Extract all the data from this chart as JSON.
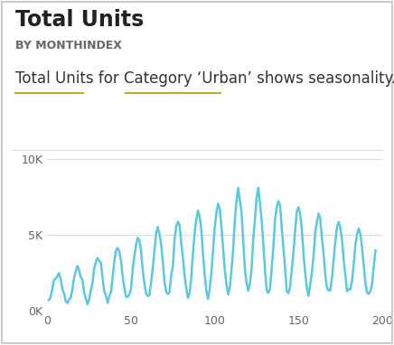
{
  "title": "Total Units",
  "subtitle": "BY MONTHINDEX",
  "annotation": "Total Units for Category ‘Urban’ shows seasonality.",
  "line_color": "#5BC8E0",
  "background_color": "#FFFFFF",
  "border_color": "#CCCCCC",
  "xlim": [
    0,
    200
  ],
  "ylim": [
    0,
    10000
  ],
  "yticks": [
    0,
    5000,
    10000
  ],
  "ytick_labels": [
    "0K",
    "5K",
    "10K"
  ],
  "xticks": [
    0,
    50,
    100,
    150,
    200
  ],
  "grid_color": "#DDDDDD",
  "underline_color": "#C8A820",
  "title_fontsize": 17,
  "subtitle_fontsize": 9,
  "annotation_fontsize": 12,
  "axis_label_fontsize": 9,
  "line_width": 1.8
}
